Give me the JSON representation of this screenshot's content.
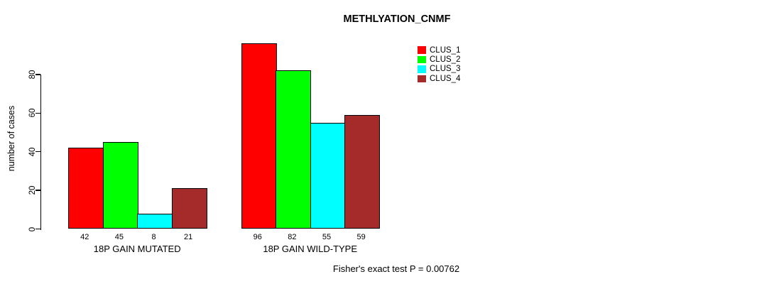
{
  "chart_data": {
    "type": "bar",
    "title": "METHLYATION_CNMF",
    "xlabel": "",
    "ylabel": "number of cases",
    "ylim": [
      0,
      100
    ],
    "yticks": [
      0,
      20,
      40,
      60,
      80
    ],
    "grid": false,
    "legend_position": "top-right",
    "categories": [
      "18P GAIN MUTATED",
      "18P GAIN WILD-TYPE"
    ],
    "series": [
      {
        "name": "CLUS_1",
        "color": "#FF0000",
        "values": [
          42,
          96
        ]
      },
      {
        "name": "CLUS_2",
        "color": "#00FF00",
        "values": [
          45,
          82
        ]
      },
      {
        "name": "CLUS_3",
        "color": "#00FFFF",
        "values": [
          8,
          55
        ]
      },
      {
        "name": "CLUS_4",
        "color": "#A52A2A",
        "values": [
          21,
          59
        ]
      }
    ],
    "bar_value_labels": [
      [
        42,
        45,
        8,
        21
      ],
      [
        96,
        82,
        55,
        59
      ]
    ],
    "annotation": "Fisher's exact test P = 0.00762"
  }
}
